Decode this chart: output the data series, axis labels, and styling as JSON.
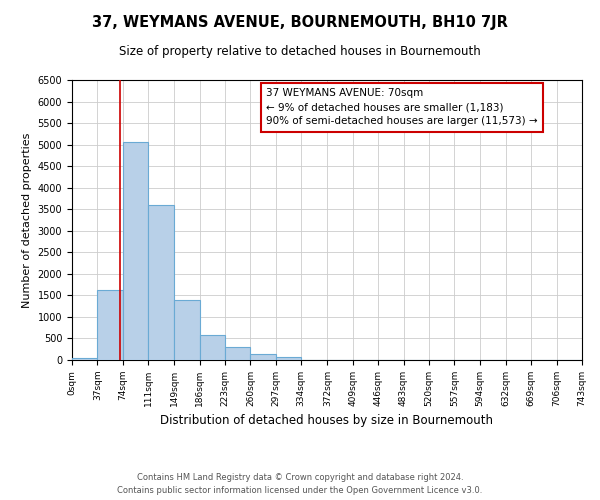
{
  "title": "37, WEYMANS AVENUE, BOURNEMOUTH, BH10 7JR",
  "subtitle": "Size of property relative to detached houses in Bournemouth",
  "xlabel": "Distribution of detached houses by size in Bournemouth",
  "ylabel": "Number of detached properties",
  "bin_edges": [
    0,
    37,
    74,
    111,
    149,
    186,
    223,
    260,
    297,
    334,
    372,
    409,
    446,
    483,
    520,
    557,
    594,
    632,
    669,
    706,
    743
  ],
  "bin_labels": [
    "0sqm",
    "37sqm",
    "74sqm",
    "111sqm",
    "149sqm",
    "186sqm",
    "223sqm",
    "260sqm",
    "297sqm",
    "334sqm",
    "372sqm",
    "409sqm",
    "446sqm",
    "483sqm",
    "520sqm",
    "557sqm",
    "594sqm",
    "632sqm",
    "669sqm",
    "706sqm",
    "743sqm"
  ],
  "bar_heights": [
    50,
    1620,
    5070,
    3600,
    1400,
    580,
    300,
    140,
    60,
    10,
    5,
    5,
    0,
    0,
    0,
    0,
    0,
    0,
    0,
    0
  ],
  "bar_color": "#b8d0e8",
  "bar_edge_color": "#6aaad4",
  "property_line_x": 70,
  "property_line_color": "#cc0000",
  "ylim": [
    0,
    6500
  ],
  "yticks": [
    0,
    500,
    1000,
    1500,
    2000,
    2500,
    3000,
    3500,
    4000,
    4500,
    5000,
    5500,
    6000,
    6500
  ],
  "annotation_title": "37 WEYMANS AVENUE: 70sqm",
  "annotation_line1": "← 9% of detached houses are smaller (1,183)",
  "annotation_line2": "90% of semi-detached houses are larger (11,573) →",
  "annotation_box_color": "#ffffff",
  "annotation_box_edge_color": "#cc0000",
  "footer_line1": "Contains HM Land Registry data © Crown copyright and database right 2024.",
  "footer_line2": "Contains public sector information licensed under the Open Government Licence v3.0.",
  "background_color": "#ffffff",
  "grid_color": "#cccccc"
}
